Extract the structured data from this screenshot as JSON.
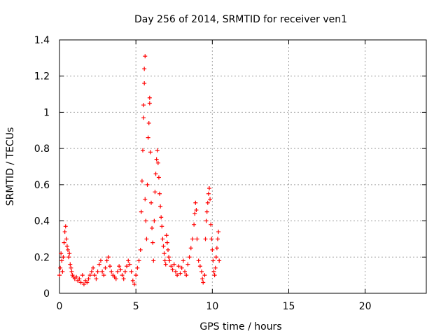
{
  "chart_data": {
    "type": "scatter",
    "title": "Day 256 of 2014, SRMTID for receiver ven1",
    "xlabel": "GPS time / hours",
    "ylabel": "SRMTID / TECUs",
    "xlim": [
      0,
      24
    ],
    "ylim": [
      0,
      1.4
    ],
    "x_ticks": [
      0,
      5,
      10,
      15,
      20
    ],
    "y_ticks": [
      0,
      0.2,
      0.4,
      0.6,
      0.8,
      1,
      1.2,
      1.4
    ],
    "x_tick_labels": [
      "0",
      "5",
      "10",
      "15",
      "20"
    ],
    "y_tick_labels": [
      "0",
      "0.2",
      "0.4",
      "0.6",
      "0.8",
      "1",
      "1.2",
      "1.4"
    ],
    "grid": true,
    "marker": "plus",
    "series": [
      {
        "color": "#ff0000",
        "points": [
          [
            0.0,
            0.1
          ],
          [
            0.05,
            0.14
          ],
          [
            0.1,
            0.22
          ],
          [
            0.15,
            0.18
          ],
          [
            0.2,
            0.12
          ],
          [
            0.25,
            0.2
          ],
          [
            0.3,
            0.28
          ],
          [
            0.35,
            0.34
          ],
          [
            0.4,
            0.37
          ],
          [
            0.45,
            0.3
          ],
          [
            0.5,
            0.26
          ],
          [
            0.55,
            0.24
          ],
          [
            0.6,
            0.2
          ],
          [
            0.65,
            0.22
          ],
          [
            0.7,
            0.16
          ],
          [
            0.75,
            0.14
          ],
          [
            0.8,
            0.12
          ],
          [
            0.85,
            0.1
          ],
          [
            0.9,
            0.09
          ],
          [
            1.0,
            0.08
          ],
          [
            1.1,
            0.09
          ],
          [
            1.2,
            0.07
          ],
          [
            1.3,
            0.08
          ],
          [
            1.4,
            0.06
          ],
          [
            1.5,
            0.1
          ],
          [
            1.6,
            0.05
          ],
          [
            1.7,
            0.07
          ],
          [
            1.8,
            0.06
          ],
          [
            1.9,
            0.08
          ],
          [
            2.0,
            0.1
          ],
          [
            2.1,
            0.12
          ],
          [
            2.2,
            0.14
          ],
          [
            2.3,
            0.1
          ],
          [
            2.4,
            0.08
          ],
          [
            2.5,
            0.12
          ],
          [
            2.6,
            0.16
          ],
          [
            2.7,
            0.18
          ],
          [
            2.8,
            0.12
          ],
          [
            2.9,
            0.1
          ],
          [
            3.0,
            0.14
          ],
          [
            3.1,
            0.18
          ],
          [
            3.2,
            0.2
          ],
          [
            3.3,
            0.15
          ],
          [
            3.4,
            0.12
          ],
          [
            3.5,
            0.1
          ],
          [
            3.6,
            0.09
          ],
          [
            3.7,
            0.08
          ],
          [
            3.8,
            0.12
          ],
          [
            3.9,
            0.15
          ],
          [
            4.0,
            0.13
          ],
          [
            4.1,
            0.1
          ],
          [
            4.2,
            0.08
          ],
          [
            4.3,
            0.12
          ],
          [
            4.4,
            0.15
          ],
          [
            4.5,
            0.18
          ],
          [
            4.6,
            0.16
          ],
          [
            4.7,
            0.12
          ],
          [
            4.8,
            0.07
          ],
          [
            4.9,
            0.05
          ],
          [
            5.0,
            0.1
          ],
          [
            5.1,
            0.14
          ],
          [
            5.2,
            0.18
          ],
          [
            5.3,
            0.24
          ],
          [
            5.35,
            0.45
          ],
          [
            5.4,
            0.62
          ],
          [
            5.45,
            0.79
          ],
          [
            5.5,
            0.97
          ],
          [
            5.5,
            1.04
          ],
          [
            5.55,
            1.16
          ],
          [
            5.55,
            1.24
          ],
          [
            5.6,
            1.31
          ],
          [
            5.6,
            0.52
          ],
          [
            5.65,
            0.4
          ],
          [
            5.7,
            0.3
          ],
          [
            5.75,
            0.6
          ],
          [
            5.8,
            0.86
          ],
          [
            5.85,
            0.94
          ],
          [
            5.9,
            1.05
          ],
          [
            5.9,
            1.08
          ],
          [
            5.95,
            0.78
          ],
          [
            6.0,
            0.5
          ],
          [
            6.05,
            0.36
          ],
          [
            6.1,
            0.28
          ],
          [
            6.15,
            0.18
          ],
          [
            6.2,
            0.4
          ],
          [
            6.25,
            0.56
          ],
          [
            6.3,
            0.66
          ],
          [
            6.35,
            0.74
          ],
          [
            6.4,
            0.79
          ],
          [
            6.45,
            0.72
          ],
          [
            6.5,
            0.64
          ],
          [
            6.55,
            0.55
          ],
          [
            6.6,
            0.48
          ],
          [
            6.65,
            0.42
          ],
          [
            6.7,
            0.37
          ],
          [
            6.75,
            0.3
          ],
          [
            6.8,
            0.26
          ],
          [
            6.85,
            0.22
          ],
          [
            6.9,
            0.18
          ],
          [
            6.95,
            0.16
          ],
          [
            7.0,
            0.32
          ],
          [
            7.05,
            0.28
          ],
          [
            7.1,
            0.24
          ],
          [
            7.15,
            0.2
          ],
          [
            7.2,
            0.18
          ],
          [
            7.3,
            0.15
          ],
          [
            7.4,
            0.13
          ],
          [
            7.5,
            0.16
          ],
          [
            7.6,
            0.12
          ],
          [
            7.7,
            0.1
          ],
          [
            7.8,
            0.15
          ],
          [
            7.9,
            0.11
          ],
          [
            8.0,
            0.14
          ],
          [
            8.1,
            0.18
          ],
          [
            8.2,
            0.12
          ],
          [
            8.3,
            0.1
          ],
          [
            8.4,
            0.16
          ],
          [
            8.5,
            0.2
          ],
          [
            8.6,
            0.25
          ],
          [
            8.7,
            0.3
          ],
          [
            8.8,
            0.38
          ],
          [
            8.85,
            0.44
          ],
          [
            8.9,
            0.5
          ],
          [
            8.95,
            0.46
          ],
          [
            9.0,
            0.3
          ],
          [
            9.1,
            0.18
          ],
          [
            9.2,
            0.15
          ],
          [
            9.3,
            0.12
          ],
          [
            9.35,
            0.08
          ],
          [
            9.4,
            0.06
          ],
          [
            9.5,
            0.1
          ],
          [
            9.55,
            0.3
          ],
          [
            9.6,
            0.4
          ],
          [
            9.65,
            0.45
          ],
          [
            9.7,
            0.5
          ],
          [
            9.75,
            0.55
          ],
          [
            9.8,
            0.58
          ],
          [
            9.85,
            0.52
          ],
          [
            9.9,
            0.38
          ],
          [
            9.95,
            0.3
          ],
          [
            10.0,
            0.24
          ],
          [
            10.05,
            0.18
          ],
          [
            10.1,
            0.12
          ],
          [
            10.15,
            0.1
          ],
          [
            10.2,
            0.14
          ],
          [
            10.25,
            0.2
          ],
          [
            10.3,
            0.25
          ],
          [
            10.35,
            0.3
          ],
          [
            10.4,
            0.34
          ],
          [
            10.45,
            0.18
          ]
        ]
      }
    ]
  }
}
